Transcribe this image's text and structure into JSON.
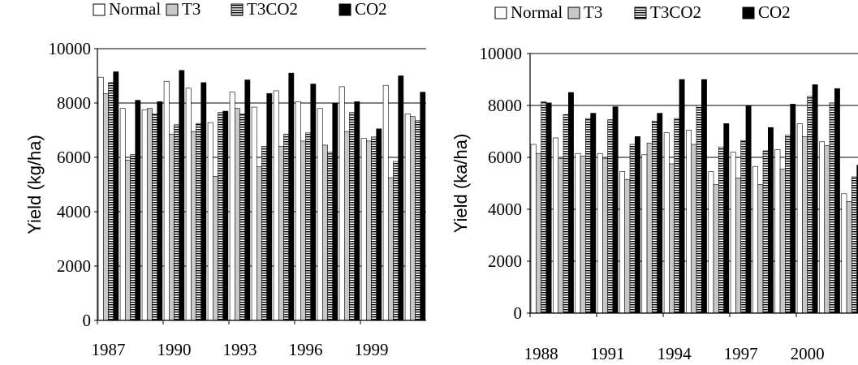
{
  "colors": {
    "normal": "#ffffff",
    "t3": "#c8c8c8",
    "t3co2_pattern": "horizontal-stripes",
    "co2": "#000000",
    "axis": "#000000",
    "grid": "#000000"
  },
  "chart_data": [
    {
      "type": "bar",
      "title": "",
      "xlabel": "",
      "ylabel": "Yield (kg/ha)",
      "ylim": [
        0,
        10000
      ],
      "yticks": [
        0,
        2000,
        4000,
        6000,
        8000,
        10000
      ],
      "grid": "horizontal",
      "legend_position": "top",
      "xtick_labels": [
        "1987",
        "1990",
        "1993",
        "1996",
        "1999"
      ],
      "categories": [
        "1987",
        "1988",
        "1989",
        "1990",
        "1991",
        "1992",
        "1993",
        "1994",
        "1995",
        "1996",
        "1997",
        "1998",
        "1999",
        "2000",
        "2001"
      ],
      "series": [
        {
          "name": "Normal",
          "values": [
            8950,
            7800,
            7750,
            8800,
            8550,
            7280,
            8400,
            7850,
            8450,
            8050,
            7800,
            8600,
            6700,
            8650,
            7600
          ]
        },
        {
          "name": "T3",
          "values": [
            8350,
            5900,
            7800,
            6850,
            6950,
            5300,
            7800,
            5650,
            6400,
            6600,
            6450,
            6950,
            6600,
            5250,
            7500
          ]
        },
        {
          "name": "T3CO2",
          "values": [
            8750,
            6100,
            7600,
            7200,
            7250,
            7650,
            7600,
            6400,
            6850,
            6900,
            6200,
            7650,
            6750,
            5850,
            7350
          ]
        },
        {
          "name": "CO2",
          "values": [
            9150,
            8100,
            8050,
            9200,
            8750,
            7700,
            8850,
            8350,
            9100,
            8700,
            8000,
            8050,
            7050,
            9000,
            8400
          ]
        }
      ]
    },
    {
      "type": "bar",
      "title": "",
      "xlabel": "",
      "ylabel": "Yield (ka/ha)",
      "ylim": [
        0,
        10000
      ],
      "yticks": [
        0,
        2000,
        4000,
        6000,
        8000,
        10000
      ],
      "grid": "horizontal",
      "legend_position": "top",
      "xtick_labels": [
        "1988",
        "1991",
        "1994",
        "1997",
        "2000"
      ],
      "categories": [
        "1988",
        "1989",
        "1990",
        "1991",
        "1992",
        "1993",
        "1994",
        "1995",
        "1996",
        "1997",
        "1998",
        "1999",
        "2000",
        "2001",
        "2002"
      ],
      "series": [
        {
          "name": "Normal",
          "values": [
            6500,
            6750,
            6150,
            6150,
            5450,
            6100,
            6950,
            7050,
            5450,
            6200,
            5650,
            6300,
            7300,
            6600,
            4600
          ]
        },
        {
          "name": "T3",
          "values": [
            6150,
            5950,
            6050,
            5950,
            5150,
            6550,
            5750,
            6500,
            4950,
            5200,
            4950,
            5550,
            6800,
            6450,
            4300
          ]
        },
        {
          "name": "T3CO2",
          "values": [
            8150,
            7650,
            7500,
            7450,
            6500,
            7400,
            7500,
            8000,
            6400,
            6650,
            6250,
            6850,
            8350,
            8100,
            5250
          ]
        },
        {
          "name": "CO2",
          "values": [
            8100,
            8500,
            7700,
            7950,
            6800,
            7700,
            9000,
            9000,
            7300,
            8000,
            7150,
            8050,
            8800,
            8650,
            5700
          ]
        }
      ]
    }
  ]
}
